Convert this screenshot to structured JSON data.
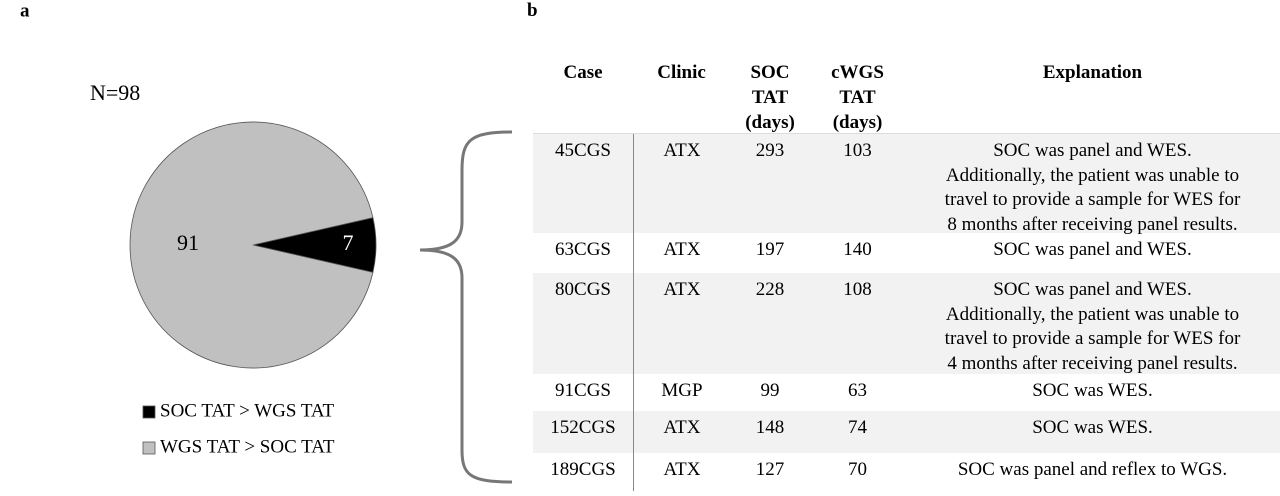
{
  "panel_labels": [
    "a",
    "b"
  ],
  "chart_data": {
    "type": "pie",
    "title": "N=98",
    "categories": [
      "SOC TAT > WGS TAT",
      "WGS TAT > SOC TAT"
    ],
    "values": [
      7,
      91
    ],
    "colors": [
      "#000000",
      "#c0c0c0"
    ]
  },
  "table": {
    "columns": [
      "Case",
      "Clinic",
      "SOC TAT (days)",
      "cWGS TAT (days)",
      "Explanation"
    ],
    "rows": [
      [
        "45CGS",
        "ATX",
        293,
        103,
        [
          "SOC was panel and WES.",
          "Additionally, the patient was unable to",
          "travel to provide a sample for WES for",
          "8 months after receiving panel results."
        ]
      ],
      [
        "63CGS",
        "ATX",
        197,
        140,
        [
          "SOC was panel and WES."
        ]
      ],
      [
        "80CGS",
        "ATX",
        228,
        108,
        [
          "SOC was panel and WES.",
          "Additionally, the patient was unable to",
          "travel to provide a sample for WES for",
          "4 months after receiving panel results."
        ]
      ],
      [
        "91CGS",
        "MGP",
        99,
        63,
        [
          "SOC was WES."
        ]
      ],
      [
        "152CGS",
        "ATX",
        148,
        74,
        [
          "SOC was WES."
        ]
      ],
      [
        "189CGS",
        "ATX",
        127,
        70,
        [
          "SOC was panel and reflex to WGS."
        ]
      ]
    ]
  }
}
